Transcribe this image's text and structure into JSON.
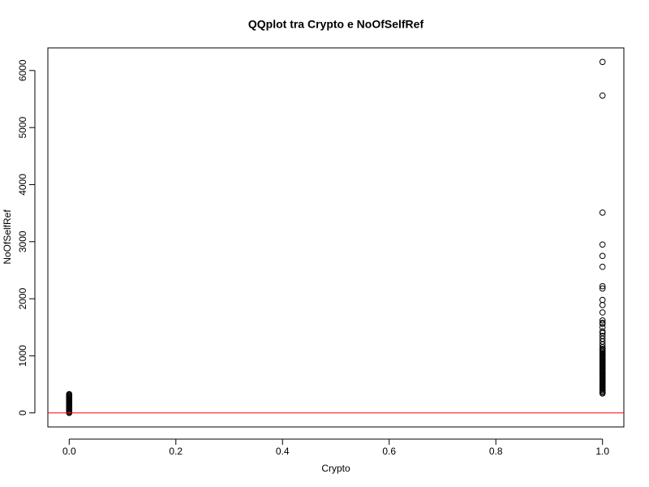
{
  "chart_data": {
    "type": "scatter",
    "title": "QQplot tra Crypto e NoOfSelfRef",
    "x_label": "Crypto",
    "y_label": "NoOfSelfRef",
    "xlim": [
      -0.04,
      1.04
    ],
    "ylim": [
      -246,
      6396
    ],
    "xticks": [
      {
        "value": 0,
        "label": "0.0"
      },
      {
        "value": 0.2,
        "label": "0.2"
      },
      {
        "value": 0.4,
        "label": "0.4"
      },
      {
        "value": 0.6,
        "label": "0.6"
      },
      {
        "value": 0.8,
        "label": "0.8"
      },
      {
        "value": 1,
        "label": "1.0"
      }
    ],
    "yticks": [
      0,
      1000,
      2000,
      3000,
      4000,
      5000,
      6000
    ],
    "color": "#000000",
    "hline": {
      "y": 0,
      "color": "#ff0000"
    },
    "x": [
      0,
      0,
      0,
      0,
      0,
      0,
      0,
      0,
      0,
      0,
      0,
      0,
      0,
      0,
      0,
      0,
      0,
      0,
      0,
      0,
      0,
      0,
      0,
      1,
      1,
      1,
      1,
      1,
      1,
      1,
      1,
      1,
      1,
      1,
      1,
      1,
      1,
      1,
      1,
      1,
      1,
      1,
      1,
      1,
      1,
      1,
      1,
      1,
      1,
      1,
      1,
      1,
      1,
      1,
      1,
      1,
      1,
      1,
      1,
      1,
      1,
      1,
      1,
      1,
      1,
      1,
      1,
      1,
      1,
      1,
      1,
      1,
      1,
      1,
      1,
      1,
      1,
      1,
      1,
      1,
      1,
      1,
      1,
      1,
      1
    ],
    "y": [
      0,
      15,
      30,
      45,
      60,
      75,
      90,
      105,
      120,
      135,
      150,
      165,
      180,
      195,
      210,
      225,
      240,
      255,
      270,
      285,
      300,
      315,
      330,
      340,
      360,
      380,
      400,
      420,
      440,
      460,
      480,
      500,
      520,
      540,
      560,
      580,
      600,
      620,
      640,
      660,
      680,
      700,
      720,
      740,
      760,
      780,
      800,
      820,
      840,
      860,
      880,
      900,
      920,
      940,
      960,
      980,
      1000,
      1020,
      1040,
      1060,
      1080,
      1100,
      1120,
      1150,
      1200,
      1250,
      1300,
      1350,
      1400,
      1430,
      1500,
      1560,
      1580,
      1620,
      1760,
      1890,
      1980,
      2180,
      2220,
      2560,
      2750,
      2950,
      3510,
      5560,
      6150
    ]
  }
}
